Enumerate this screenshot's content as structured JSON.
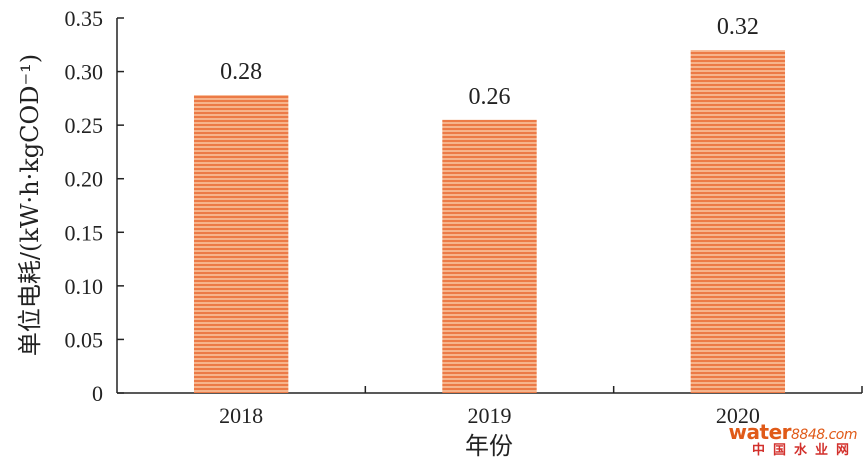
{
  "chart_data": {
    "type": "bar",
    "categories": [
      "2018",
      "2019",
      "2020"
    ],
    "values": [
      0.278,
      0.255,
      0.32
    ],
    "data_labels": [
      "0.28",
      "0.26",
      "0.32"
    ],
    "xlabel": "年份",
    "ylabel": "单位电耗/(kW·h·kgCOD⁻¹)",
    "ylim": [
      0,
      0.35
    ],
    "yticks": [
      "0",
      "0.05",
      "0.10",
      "0.15",
      "0.20",
      "0.25",
      "0.30",
      "0.35"
    ],
    "grid": false,
    "bar_color": "#f0a070",
    "bar_stripe_color": "#e86a3a"
  },
  "watermark": {
    "brand": "water",
    "number": "8848",
    "tld": ".com",
    "caption": "中国水业网"
  }
}
